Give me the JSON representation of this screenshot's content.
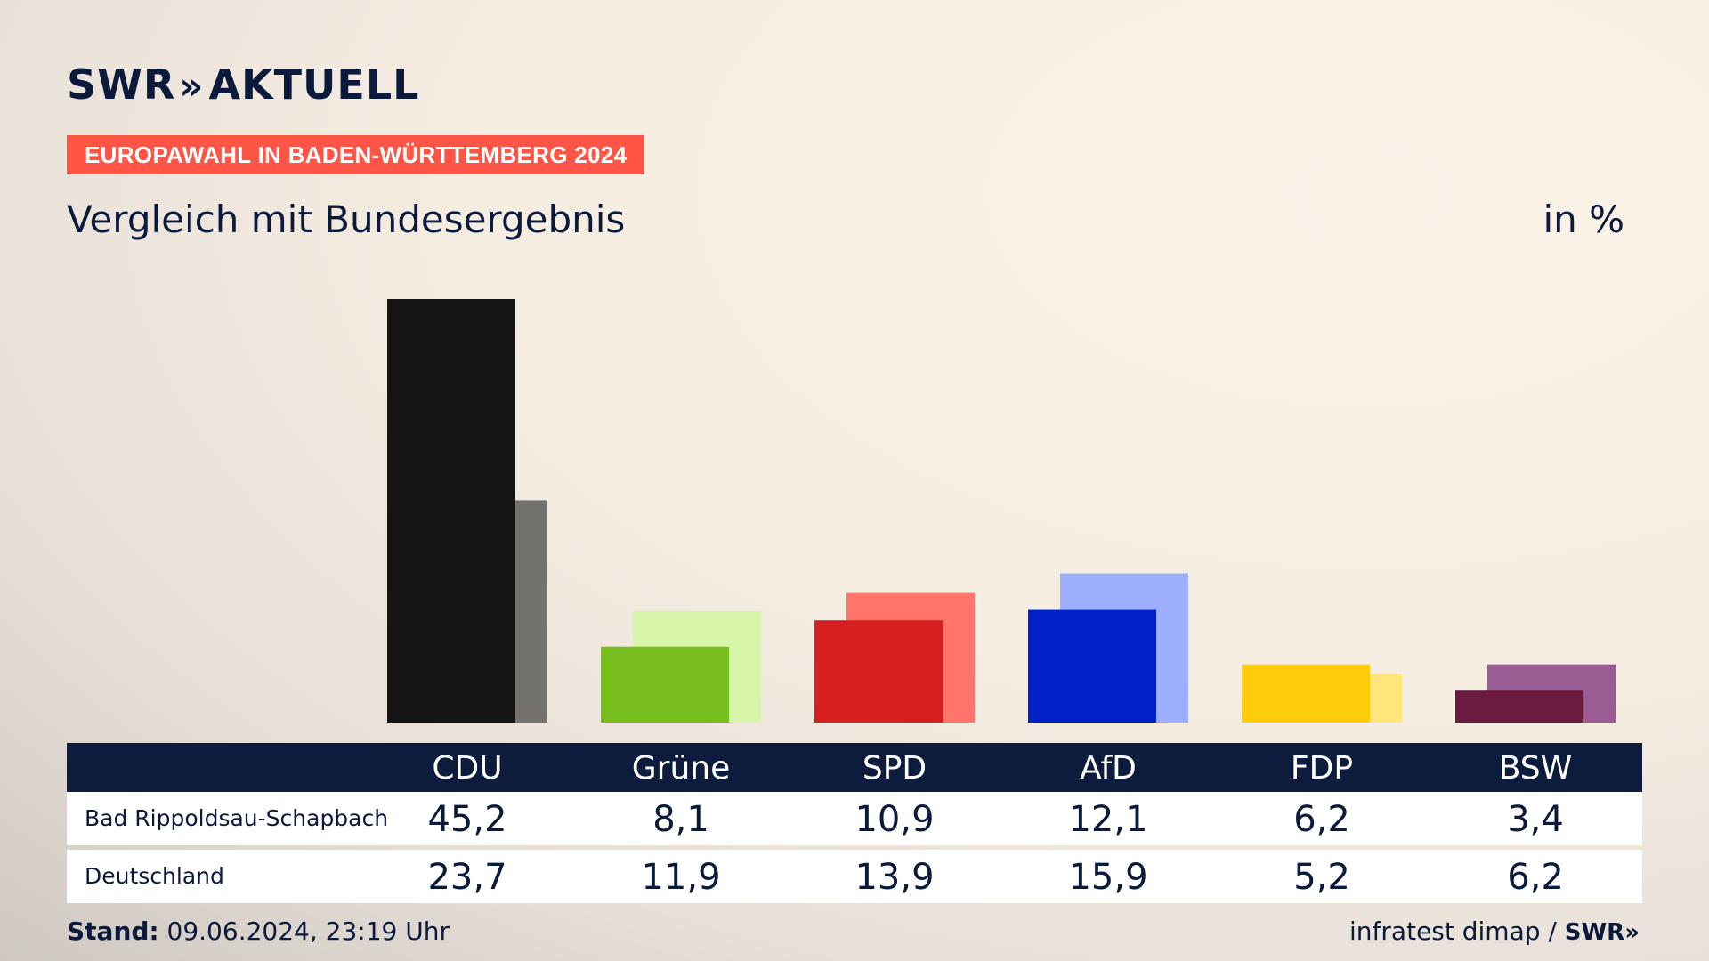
{
  "brand": {
    "name": "SWR",
    "arrows": "»",
    "product": "AKTUELL"
  },
  "badge": "EUROPAWAHL IN BADEN-WÜRTTEMBERG 2024",
  "subtitle": "Vergleich mit Bundesergebnis",
  "unit": "in %",
  "footer": {
    "stand_label": "Stand:",
    "stand_value": "09.06.2024, 23:19 Uhr",
    "source": "infratest dimap /",
    "source_brand": "SWR»"
  },
  "chart_data": {
    "type": "bar",
    "categories": [
      "CDU",
      "Grüne",
      "SPD",
      "AfD",
      "FDP",
      "BSW"
    ],
    "series": [
      {
        "name": "Bad Rippoldsau-Schapbach",
        "values": [
          45.2,
          8.1,
          10.9,
          12.1,
          6.2,
          3.4
        ]
      },
      {
        "name": "Deutschland",
        "values": [
          23.7,
          11.9,
          13.9,
          15.9,
          5.2,
          6.2
        ]
      }
    ],
    "colors_primary": [
      "#141414",
      "#78be1e",
      "#d81f1f",
      "#0021c8",
      "#ffcc0a",
      "#6b1a40"
    ],
    "colors_secondary": [
      "#74726f",
      "#d6f5a8",
      "#ff756b",
      "#9daeff",
      "#ffe57a",
      "#9b5c94"
    ],
    "ylim": [
      0,
      45.2
    ]
  }
}
